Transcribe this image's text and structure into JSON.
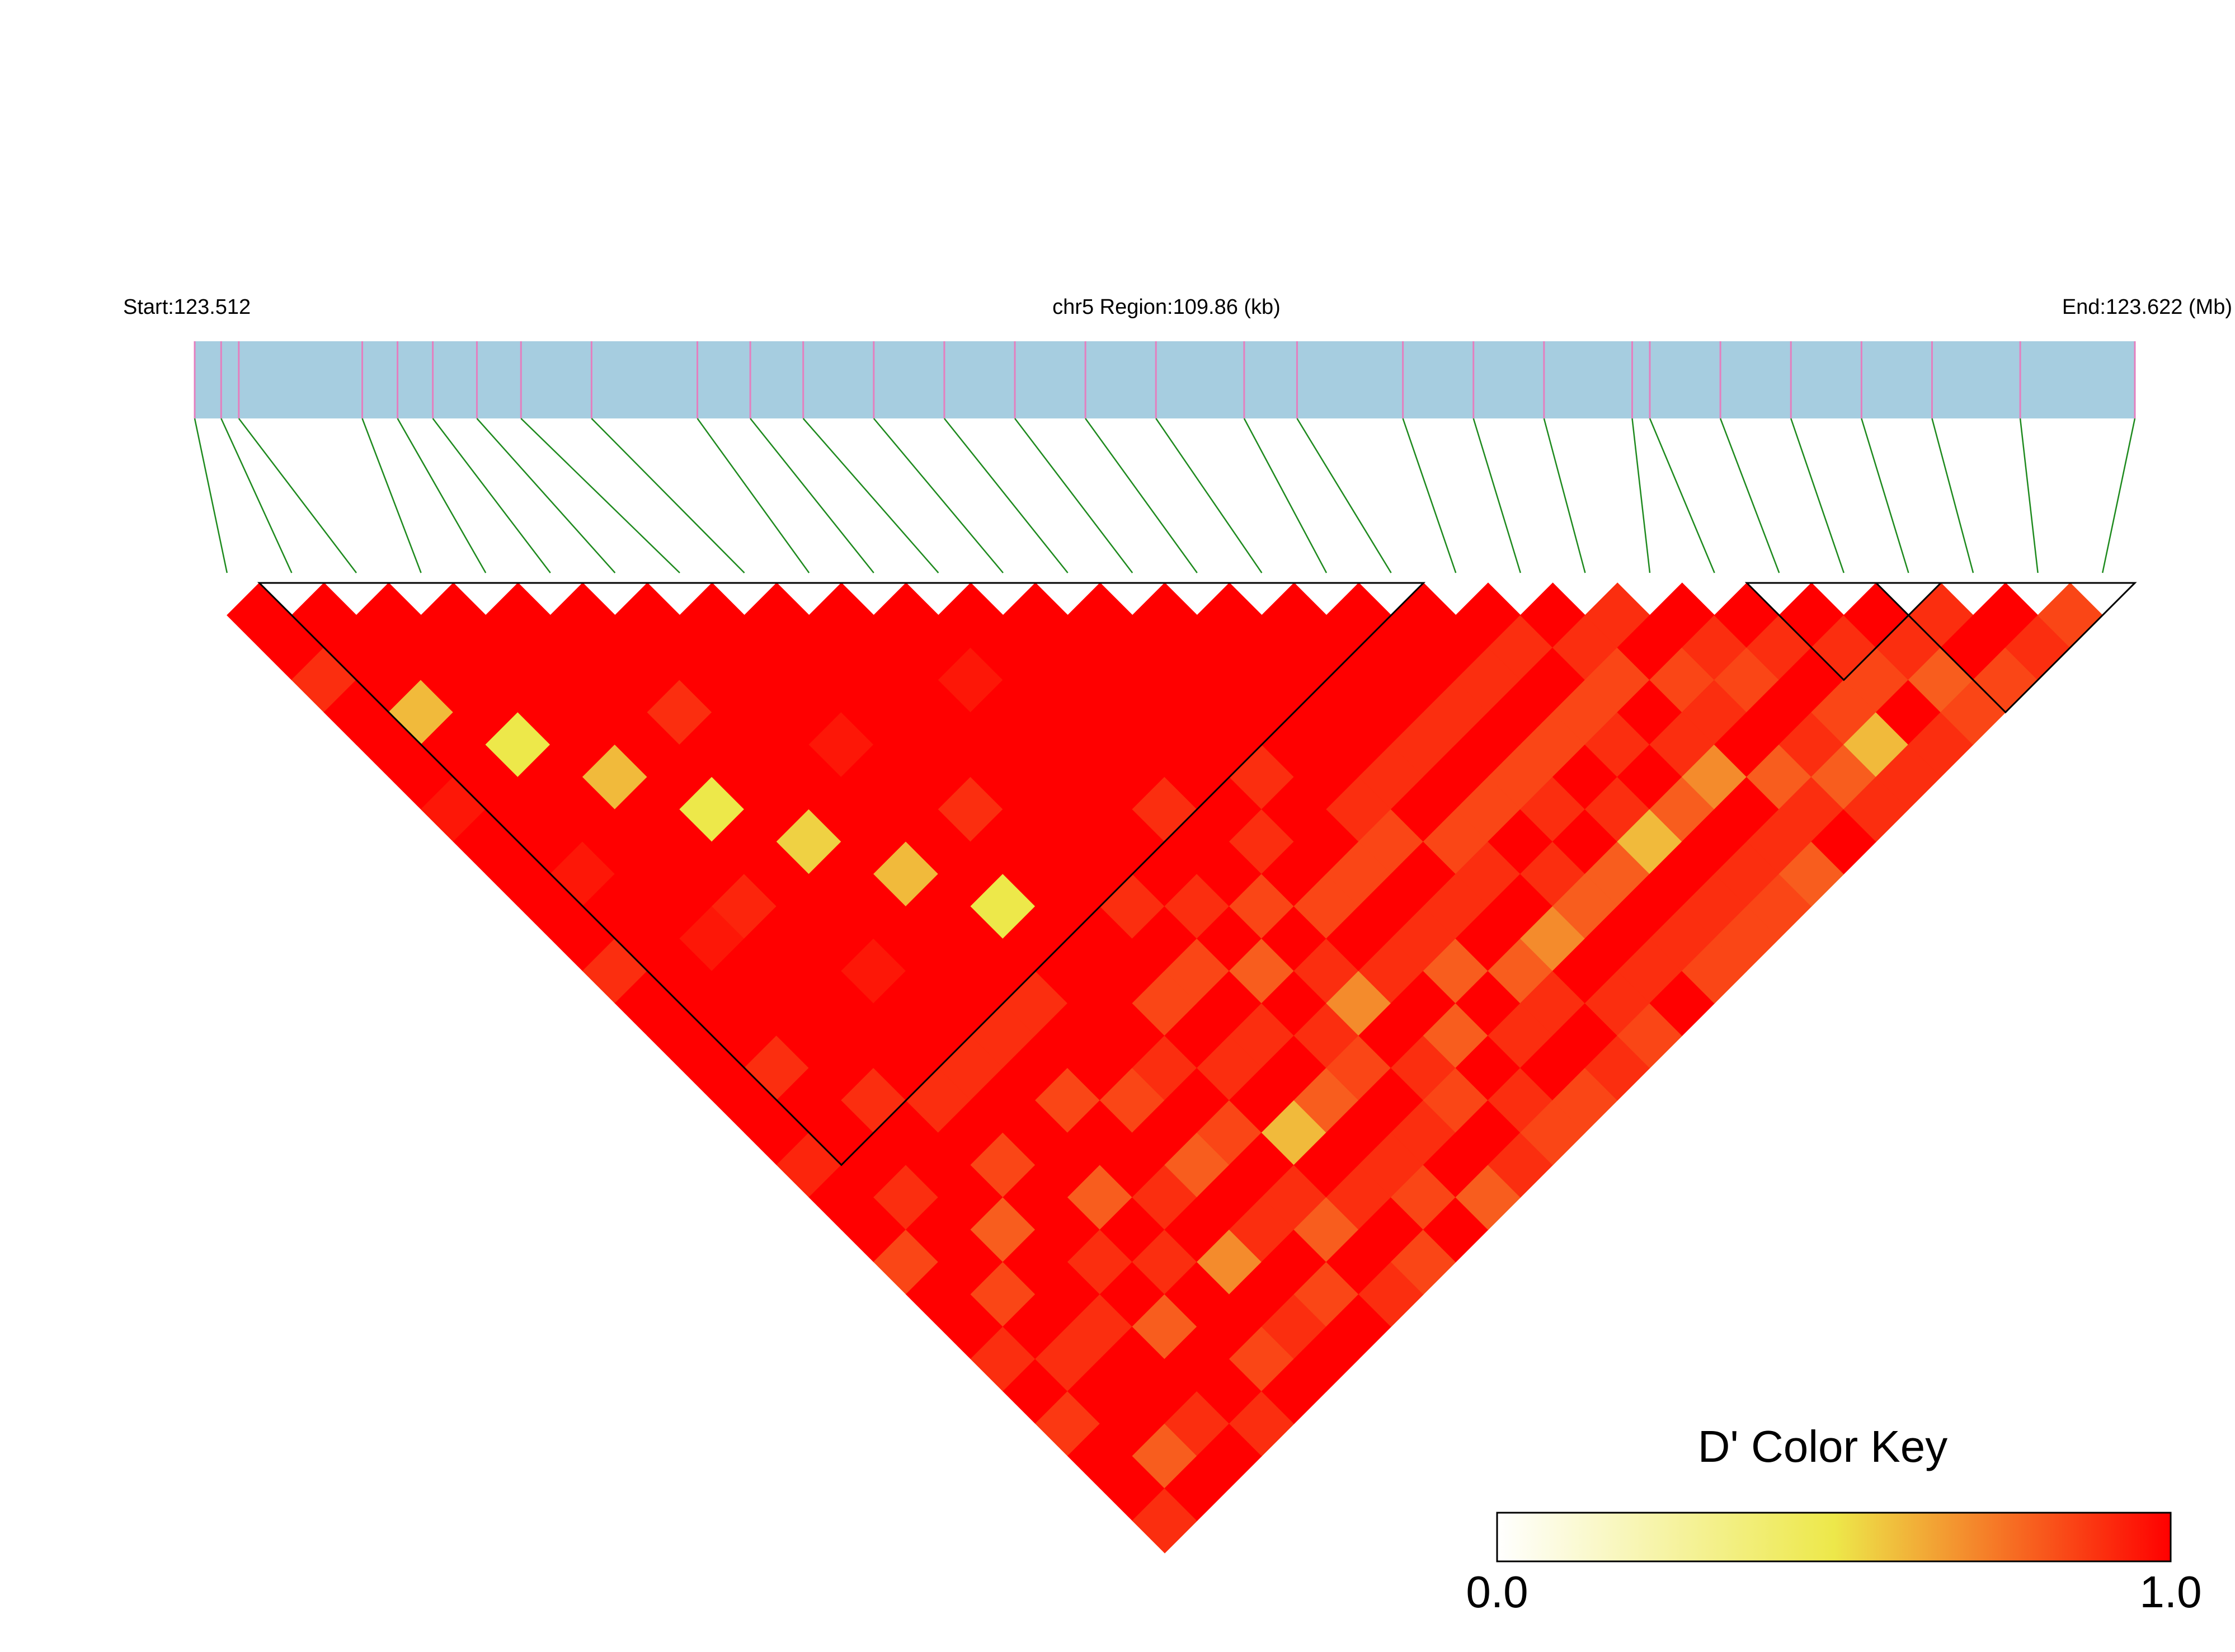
{
  "chart_data": {
    "type": "ld-heatmap",
    "title_left": "Start:123.512",
    "title_center": "chr5 Region:109.86 (kb)",
    "title_right": "End:123.622 (Mb)",
    "xlim": [
      123.512,
      123.622
    ],
    "snp_positions": [
      123.512,
      123.5135,
      123.5145,
      123.5215,
      123.5235,
      123.5255,
      123.528,
      123.5305,
      123.5345,
      123.5405,
      123.5435,
      123.5465,
      123.5505,
      123.5545,
      123.5585,
      123.5625,
      123.5665,
      123.5715,
      123.5745,
      123.5805,
      123.5845,
      123.5885,
      123.5935,
      123.5945,
      123.5985,
      123.6025,
      123.6065,
      123.6105,
      123.6155,
      123.622
    ],
    "ld": [
      [
        1,
        1,
        0.9,
        1,
        1,
        1,
        0.95,
        1,
        1,
        1,
        1,
        0.9,
        1,
        1,
        1,
        1,
        1,
        0.92,
        1,
        1,
        0.85,
        1,
        1,
        0.9,
        1,
        0.88,
        1,
        1,
        0.9
      ],
      [
        1,
        1,
        1,
        0.6,
        1,
        1,
        1,
        1,
        0.95,
        1,
        1,
        1,
        1,
        1,
        0.9,
        1,
        1,
        1,
        0.9,
        1,
        1,
        0.85,
        1,
        0.9,
        1,
        1,
        0.8,
        1
      ],
      [
        1,
        1,
        1,
        1,
        0.5,
        1,
        1,
        1,
        1,
        1,
        0.95,
        1,
        1,
        1,
        1,
        0.9,
        1,
        1,
        1,
        0.8,
        1,
        1,
        0.9,
        1,
        1,
        0.9,
        1
      ],
      [
        1,
        1,
        1,
        1,
        1,
        0.6,
        1,
        1,
        1,
        0.92,
        1,
        1,
        1,
        1,
        1,
        0.9,
        1,
        0.85,
        1,
        1,
        0.9,
        1,
        0.8,
        1,
        1,
        0.9
      ],
      [
        1,
        1,
        1,
        1,
        1,
        1,
        0.5,
        1,
        1,
        1,
        1,
        0.95,
        1,
        1,
        0.9,
        1,
        1,
        1,
        0.8,
        1,
        0.9,
        1,
        1,
        0.85,
        1
      ],
      [
        1,
        1,
        1,
        0.9,
        1,
        1,
        1,
        0.55,
        1,
        1,
        1,
        1,
        1,
        0.9,
        1,
        0.85,
        1,
        1,
        0.9,
        1,
        0.7,
        1,
        0.9,
        1
      ],
      [
        1,
        1,
        1,
        1,
        1,
        1,
        1,
        1,
        0.6,
        1,
        1,
        1,
        0.9,
        1,
        1,
        0.85,
        1,
        0.8,
        1,
        0.9,
        1,
        0.85,
        1
      ],
      [
        1,
        1,
        1,
        1,
        0.95,
        1,
        1,
        1,
        1,
        0.5,
        1,
        1,
        1,
        1,
        0.9,
        1,
        0.85,
        1,
        0.9,
        0.8,
        1,
        0.9
      ],
      [
        1,
        1,
        1,
        1,
        1,
        1,
        0.9,
        1,
        1,
        1,
        1,
        1,
        0.85,
        1,
        0.9,
        1,
        0.6,
        1,
        0.9,
        1,
        0.85
      ],
      [
        1,
        1,
        1,
        1,
        1,
        1,
        1,
        1,
        1,
        0.9,
        1,
        0.85,
        1,
        0.9,
        1,
        0.8,
        1,
        0.9,
        0.85,
        1
      ],
      [
        1,
        1,
        0.95,
        1,
        1,
        1,
        1,
        1,
        1,
        0.9,
        1,
        0.8,
        1,
        0.9,
        0.85,
        1,
        0.9,
        1,
        0.8
      ],
      [
        1,
        1,
        1,
        1,
        1,
        1,
        0.9,
        1,
        1,
        0.85,
        1,
        0.9,
        0.7,
        1,
        0.9,
        0.85,
        1,
        0.9
      ],
      [
        1,
        1,
        1,
        1,
        1,
        1,
        1,
        0.9,
        1,
        0.85,
        1,
        0.9,
        1,
        0.8,
        1,
        0.9,
        0.85
      ],
      [
        1,
        1,
        1,
        1,
        1,
        0.9,
        1,
        1,
        0.85,
        1,
        0.9,
        0.8,
        1,
        0.9,
        1,
        0.85
      ],
      [
        1,
        1,
        1,
        1,
        1,
        1,
        0.9,
        0.85,
        1,
        0.9,
        1,
        0.8,
        0.9,
        1,
        0.9
      ],
      [
        1,
        1,
        1,
        1,
        1,
        0.9,
        1,
        0.85,
        0.9,
        1,
        0.7,
        1,
        0.9,
        0.85
      ],
      [
        1,
        1,
        1,
        1,
        0.9,
        1,
        0.85,
        1,
        0.9,
        0.8,
        1,
        0.9,
        1
      ],
      [
        1,
        1,
        1,
        0.9,
        1,
        0.85,
        0.9,
        1,
        0.8,
        1,
        0.9,
        0.85
      ],
      [
        1,
        1,
        0.9,
        1,
        0.85,
        1,
        0.9,
        0.6,
        1,
        0.9,
        0.85
      ],
      [
        1,
        0.9,
        1,
        0.85,
        0.9,
        1,
        0.8,
        1,
        0.9,
        0.85
      ],
      [
        1,
        0.9,
        0.85,
        1,
        0.9,
        0.7,
        1,
        0.9,
        0.8
      ],
      [
        0.9,
        1,
        0.85,
        0.9,
        1,
        0.8,
        0.9,
        1
      ],
      [
        1,
        0.9,
        0.85,
        1,
        0.9,
        0.8,
        0.9
      ],
      [
        1,
        0.9,
        1,
        0.85,
        0.6,
        0.9
      ],
      [
        1,
        0.9,
        0.85,
        1,
        0.9
      ],
      [
        1,
        0.9,
        0.8,
        0.85
      ],
      [
        0.9,
        1,
        0.85
      ],
      [
        1,
        0.9
      ],
      [
        0.85
      ]
    ],
    "blocks": [
      [
        1,
        18
      ],
      [
        24,
        26
      ],
      [
        26,
        29
      ]
    ],
    "colors": [
      "#ffffff",
      "#ede84a",
      "#ff0000"
    ],
    "key_title": "D' Color Key",
    "key_lim": [
      0,
      1
    ],
    "key_ticks": [
      {
        "value": 0,
        "label": "0.0"
      },
      {
        "value": 1,
        "label": "1.0"
      }
    ]
  }
}
